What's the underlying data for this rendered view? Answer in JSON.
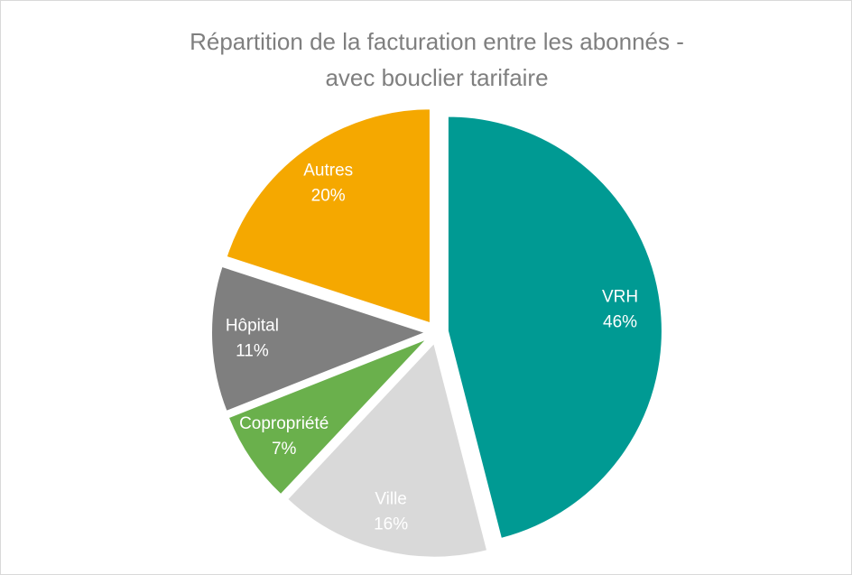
{
  "chart_data": {
    "type": "pie",
    "title": [
      "Répartition de la facturation entre les abonnés -",
      "avec bouclier tarifaire"
    ],
    "categories": [
      "VRH",
      "Ville",
      "Copropriété",
      "Hôpital",
      "Autres"
    ],
    "values": [
      46,
      16,
      7,
      11,
      20
    ],
    "value_labels": [
      "46%",
      "16%",
      "7%",
      "11%",
      "20%"
    ],
    "colors": [
      "#009a93",
      "#d9d9d9",
      "#6ab04c",
      "#7f7f7f",
      "#f5a800"
    ]
  }
}
